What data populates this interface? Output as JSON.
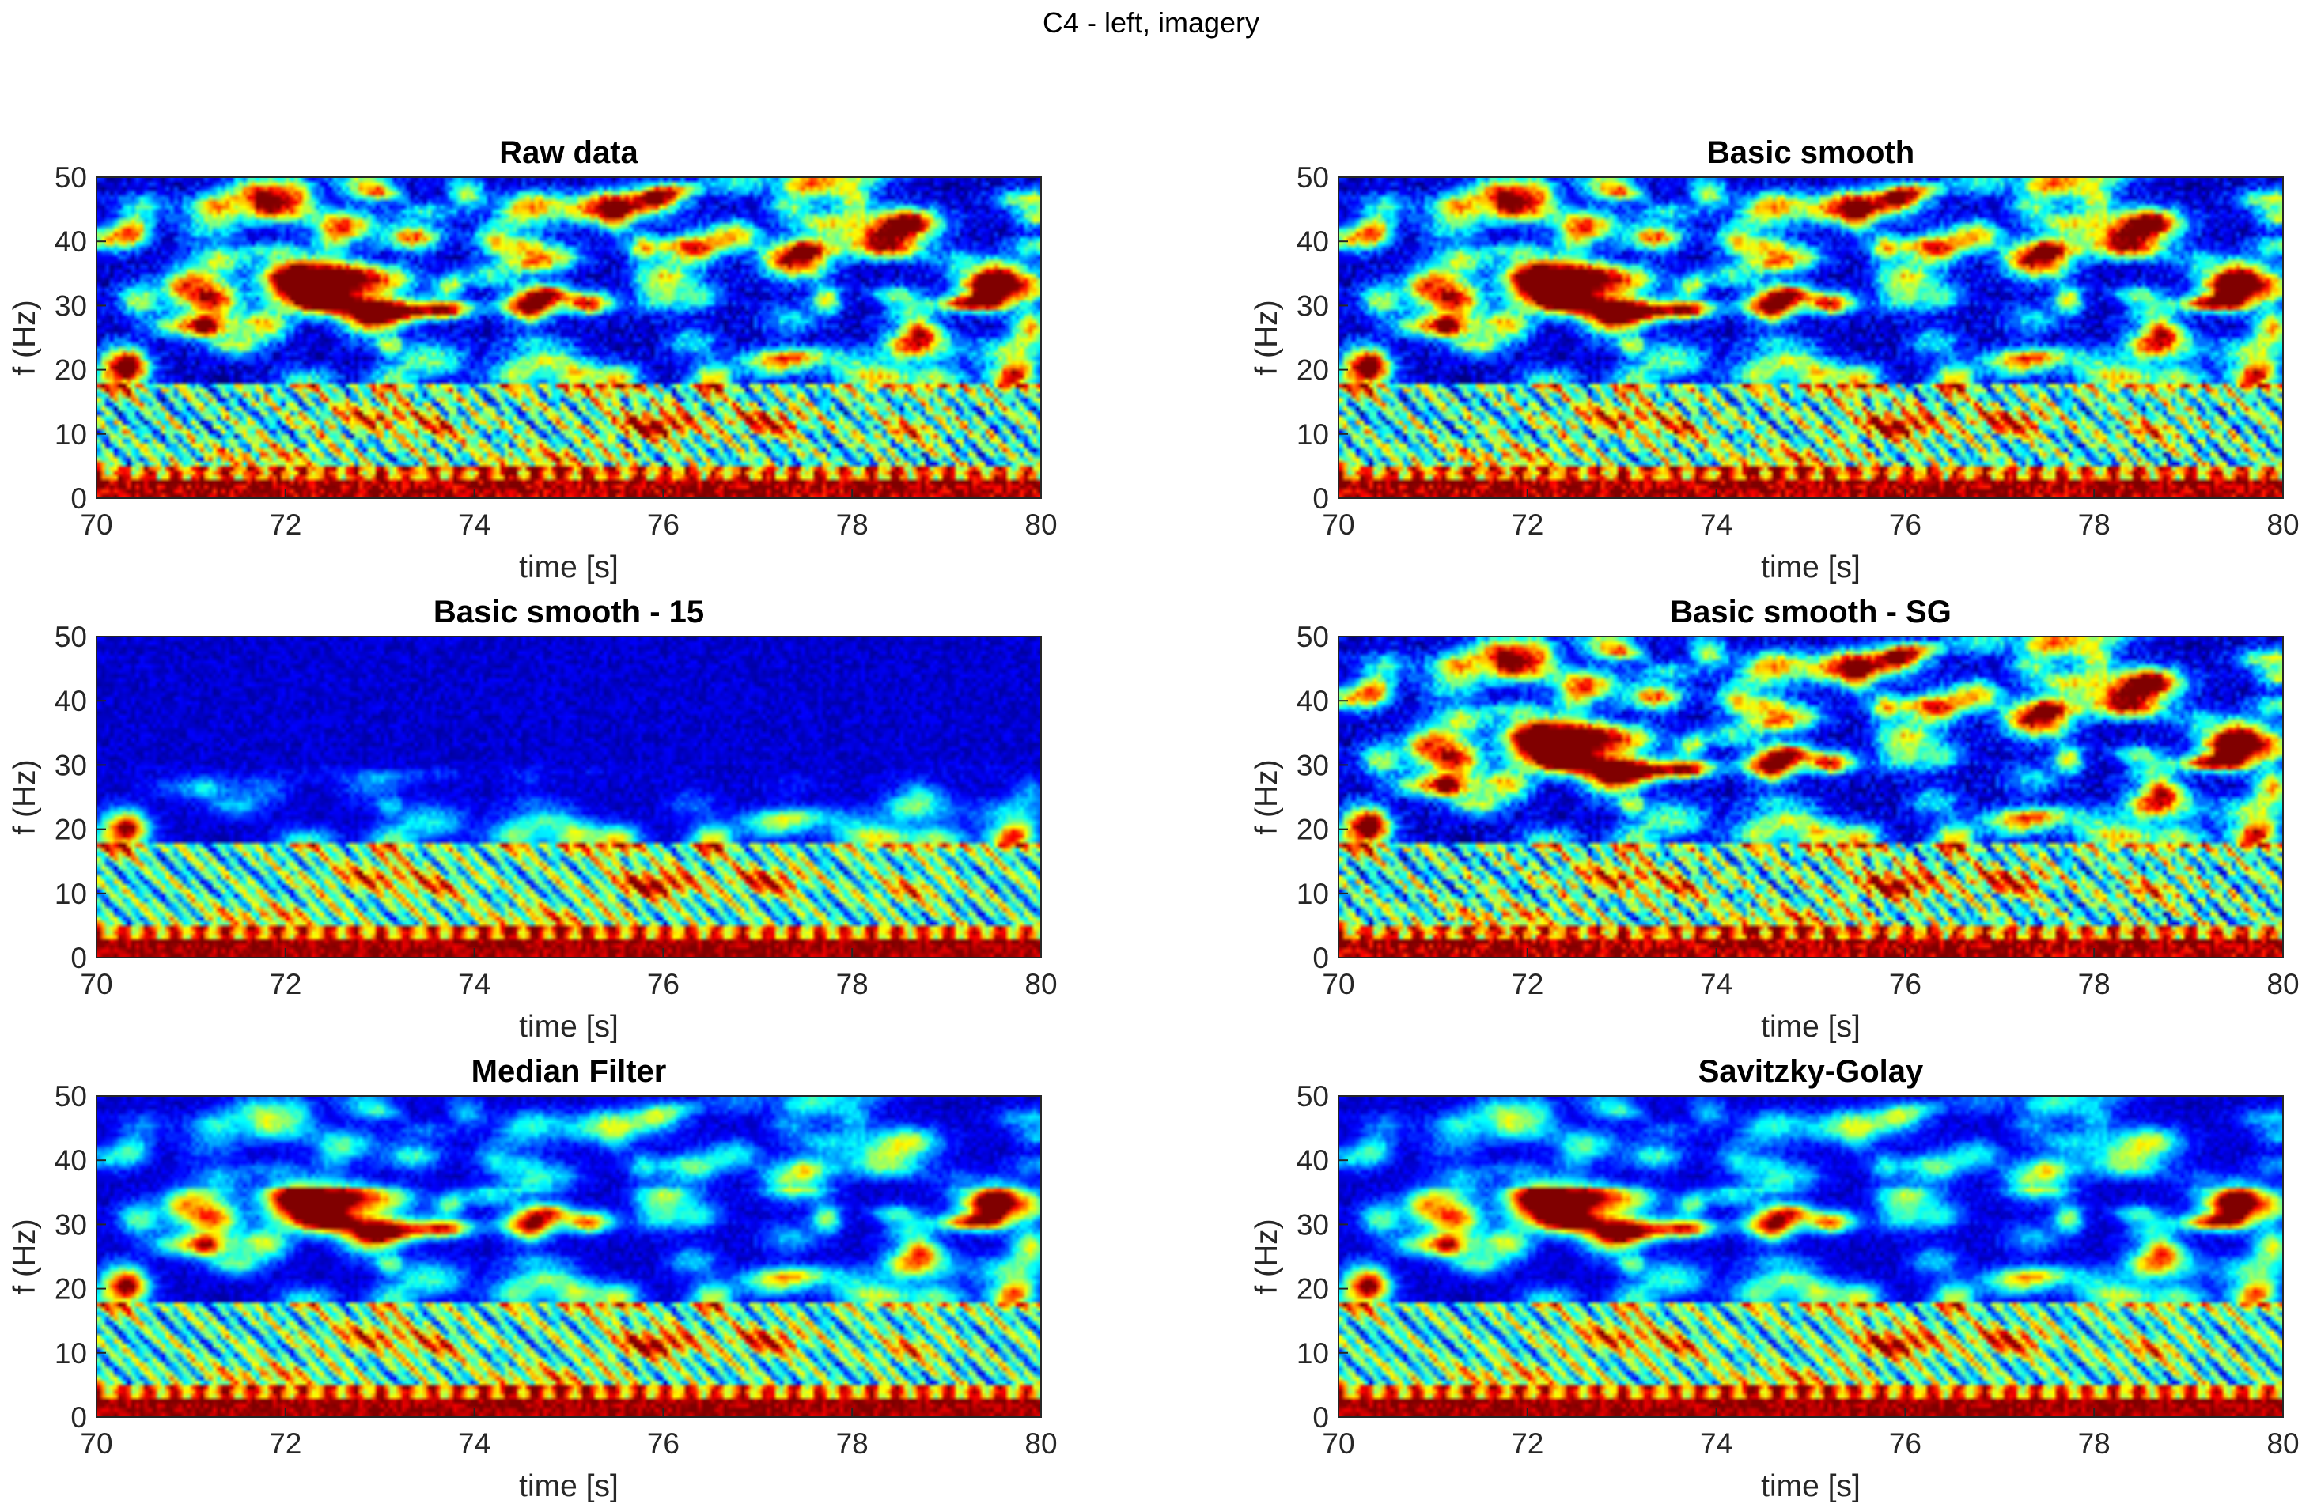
{
  "figure_title": "C4 - left, imagery",
  "colormap": "jet",
  "chart_data": [
    {
      "type": "heatmap",
      "title": "Raw data",
      "xlabel": "time [s]",
      "ylabel": "f (Hz)",
      "xlim": [
        70,
        80
      ],
      "ylim": [
        0,
        50
      ],
      "xticks": [
        70,
        72,
        74,
        76,
        78,
        80
      ],
      "yticks": [
        0,
        10,
        20,
        30,
        40,
        50
      ],
      "smoothing": "raw",
      "grid": false
    },
    {
      "type": "heatmap",
      "title": "Basic smooth",
      "xlabel": "time [s]",
      "ylabel": "f (Hz)",
      "xlim": [
        70,
        80
      ],
      "ylim": [
        0,
        50
      ],
      "xticks": [
        70,
        72,
        74,
        76,
        78,
        80
      ],
      "yticks": [
        0,
        10,
        20,
        30,
        40,
        50
      ],
      "smoothing": "basic",
      "grid": false
    },
    {
      "type": "heatmap",
      "title": "Basic smooth - 15",
      "xlabel": "time [s]",
      "ylabel": "f (Hz)",
      "xlim": [
        70,
        80
      ],
      "ylim": [
        0,
        50
      ],
      "xticks": [
        70,
        72,
        74,
        76,
        78,
        80
      ],
      "yticks": [
        0,
        10,
        20,
        30,
        40,
        50
      ],
      "smoothing": "basic15",
      "grid": false
    },
    {
      "type": "heatmap",
      "title": "Basic smooth - SG",
      "xlabel": "time [s]",
      "ylabel": "f (Hz)",
      "xlim": [
        70,
        80
      ],
      "ylim": [
        0,
        50
      ],
      "xticks": [
        70,
        72,
        74,
        76,
        78,
        80
      ],
      "yticks": [
        0,
        10,
        20,
        30,
        40,
        50
      ],
      "smoothing": "sg",
      "grid": false
    },
    {
      "type": "heatmap",
      "title": "Median Filter",
      "xlabel": "time [s]",
      "ylabel": "f (Hz)",
      "xlim": [
        70,
        80
      ],
      "ylim": [
        0,
        50
      ],
      "xticks": [
        70,
        72,
        74,
        76,
        78,
        80
      ],
      "yticks": [
        0,
        10,
        20,
        30,
        40,
        50
      ],
      "smoothing": "median",
      "grid": false
    },
    {
      "type": "heatmap",
      "title": "Savitzky-Golay",
      "xlabel": "time [s]",
      "ylabel": "f (Hz)",
      "xlim": [
        70,
        80
      ],
      "ylim": [
        0,
        50
      ],
      "xticks": [
        70,
        72,
        74,
        76,
        78,
        80
      ],
      "yticks": [
        0,
        10,
        20,
        30,
        40,
        50
      ],
      "smoothing": "savgol",
      "grid": false
    }
  ]
}
